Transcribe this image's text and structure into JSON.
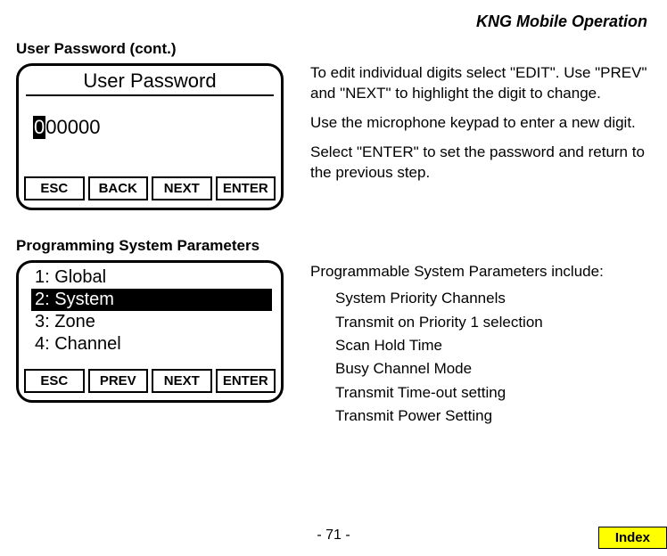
{
  "header": {
    "doc_title": "KNG Mobile Operation"
  },
  "section1": {
    "heading": "User Password (cont.)",
    "device": {
      "title": "User Password",
      "cursor_digit": "0",
      "rest_digits": "00000",
      "buttons": [
        "ESC",
        "BACK",
        "NEXT",
        "ENTER"
      ]
    },
    "text": {
      "p1": "To edit individual digits select \"EDIT\". Use \"PREV\" and \"NEXT\" to highlight the digit to change.",
      "p2": "Use the microphone keypad to enter a new digit.",
      "p3": "Select \"ENTER\" to set the password and return to the previous step."
    }
  },
  "section2": {
    "heading": "Programming System Parameters",
    "device": {
      "items": [
        "1: Global",
        "2: System",
        "3: Zone",
        "4: Channel"
      ],
      "selected_index": 1,
      "buttons": [
        "ESC",
        "PREV",
        "NEXT",
        "ENTER"
      ]
    },
    "text": {
      "intro": "Programmable System Parameters include:",
      "items": [
        "System Priority Channels",
        "Transmit on Priority 1 selection",
        "Scan Hold Time",
        "Busy Channel Mode",
        "Transmit Time-out setting",
        "Transmit Power Setting"
      ]
    }
  },
  "footer": {
    "page": "- 71 -",
    "index": "Index"
  }
}
